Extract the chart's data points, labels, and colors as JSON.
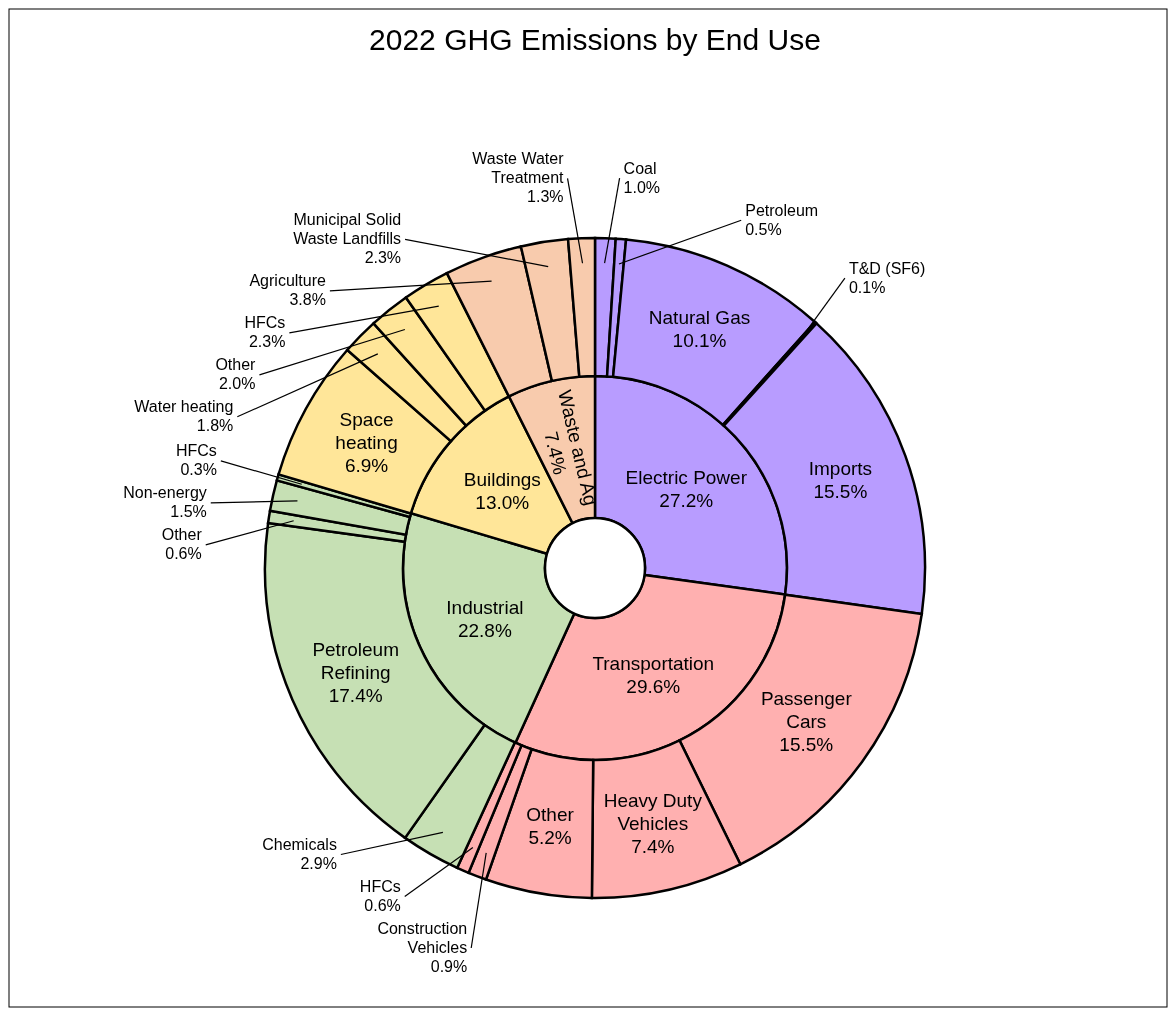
{
  "chart_data": [
    {
      "type": "donut",
      "title": "2022 GHG Emissions by End Use",
      "categories": [
        "Electric Power",
        "Transportation",
        "Industrial",
        "Buildings",
        "Waste and Ag"
      ],
      "values": [
        27.2,
        29.6,
        22.8,
        13.0,
        7.4
      ],
      "colors": [
        "#b89cff",
        "#ffb0b0",
        "#c6e0b4",
        "#ffe699",
        "#f8cbad"
      ],
      "value_labels": [
        "27.2%",
        "29.6%",
        "22.8%",
        "13.0%",
        "7.4%"
      ]
    },
    {
      "type": "donut",
      "categories": [
        "Coal",
        "Petroleum",
        "Natural Gas",
        "T&D (SF6)",
        "Imports",
        "Passenger Cars",
        "Heavy Duty Vehicles",
        "Other",
        "Construction Vehicles",
        "HFCs",
        "Chemicals",
        "Petroleum Refining",
        "Other",
        "Non-energy",
        "HFCs",
        "Space heating",
        "Water heating",
        "Other",
        "HFCs",
        "Agriculture",
        "Municipal Solid Waste Landfills",
        "Waste Water Treatment"
      ],
      "values": [
        1.0,
        0.5,
        10.1,
        0.1,
        15.5,
        15.5,
        7.4,
        5.2,
        0.9,
        0.6,
        2.9,
        17.4,
        0.6,
        1.5,
        0.3,
        6.9,
        1.8,
        2.0,
        2.3,
        3.8,
        2.3,
        1.3
      ],
      "colors": [
        "#b89cff",
        "#b89cff",
        "#b89cff",
        "#b89cff",
        "#b89cff",
        "#ffb0b0",
        "#ffb0b0",
        "#ffb0b0",
        "#ffb0b0",
        "#ffb0b0",
        "#c6e0b4",
        "#c6e0b4",
        "#c6e0b4",
        "#c6e0b4",
        "#c6e0b4",
        "#ffe699",
        "#ffe699",
        "#ffe699",
        "#ffe699",
        "#f8cbad",
        "#f8cbad",
        "#f8cbad"
      ],
      "value_labels": [
        "1.0%",
        "0.5%",
        "10.1%",
        "0.1%",
        "15.5%",
        "15.5%",
        "7.4%",
        "5.2%",
        "0.9%",
        "0.6%",
        "2.9%",
        "17.4%",
        "0.6%",
        "1.5%",
        "0.3%",
        "6.9%",
        "1.8%",
        "2.0%",
        "2.3%",
        "3.8%",
        "2.3%",
        "1.3%"
      ]
    }
  ]
}
